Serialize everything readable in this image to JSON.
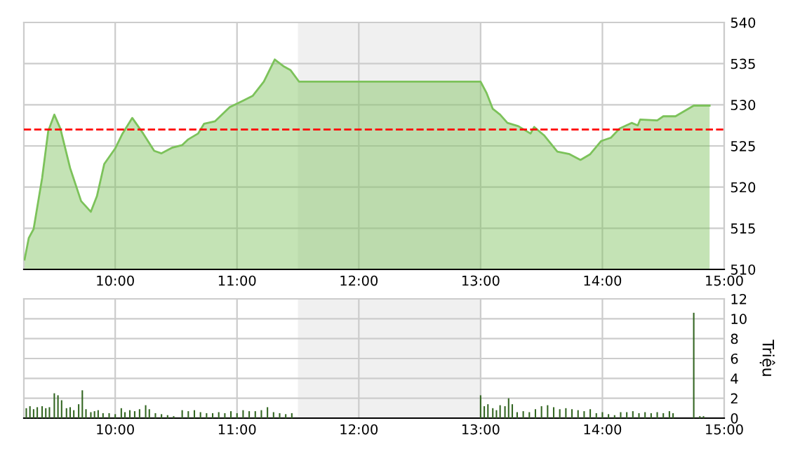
{
  "chart_data": [
    {
      "type": "area",
      "x": [
        9.256,
        9.29,
        9.33,
        9.4,
        9.45,
        9.5,
        9.55,
        9.63,
        9.72,
        9.8,
        9.85,
        9.91,
        10.0,
        10.06,
        10.14,
        10.23,
        10.32,
        10.38,
        10.47,
        10.55,
        10.6,
        10.68,
        10.73,
        10.82,
        10.94,
        11.05,
        11.13,
        11.22,
        11.31,
        11.38,
        11.44,
        11.51,
        13.0,
        13.05,
        13.1,
        13.16,
        13.22,
        13.31,
        13.41,
        13.44,
        13.52,
        13.63,
        13.73,
        13.82,
        13.9,
        13.99,
        14.07,
        14.14,
        14.24,
        14.29,
        14.31,
        14.45,
        14.5,
        14.6,
        14.75,
        14.88
      ],
      "series": [
        {
          "color": "#7cc25a",
          "values": [
            511.2,
            513.8,
            514.9,
            521.1,
            526.8,
            528.8,
            527.1,
            522.3,
            518.3,
            517.0,
            518.9,
            522.8,
            524.7,
            526.5,
            528.4,
            526.5,
            524.4,
            524.1,
            524.8,
            525.1,
            525.8,
            526.5,
            527.7,
            528.0,
            529.7,
            530.5,
            531.1,
            532.8,
            535.5,
            534.7,
            534.2,
            532.8,
            532.8,
            531.4,
            529.5,
            528.8,
            527.8,
            527.4,
            526.5,
            527.3,
            526.3,
            524.3,
            524.0,
            523.3,
            524.0,
            525.6,
            526.0,
            527.1,
            527.8,
            527.5,
            528.2,
            528.1,
            528.6,
            528.6,
            529.9,
            529.9
          ]
        }
      ],
      "xlim": [
        9.25,
        15
      ],
      "xticks": [
        {
          "value": 10,
          "label": "10:00"
        },
        {
          "value": 11,
          "label": "11:00"
        },
        {
          "value": 12,
          "label": "12:00"
        },
        {
          "value": 13,
          "label": "13:00"
        },
        {
          "value": 14,
          "label": "14:00"
        },
        {
          "value": 15,
          "label": "15:00"
        }
      ],
      "ylim": [
        510,
        540
      ],
      "yticks": [
        510,
        515,
        520,
        525,
        530,
        535,
        540
      ],
      "grid": true,
      "ref_lines": [
        {
          "axis": "y",
          "value": 527,
          "color": "#ff0000",
          "line_style": "dashed"
        }
      ],
      "bands": [
        {
          "axis": "x",
          "from": 11.5,
          "to": 13.0,
          "color": "#f0f0f0"
        }
      ]
    },
    {
      "type": "bar",
      "ylabel": "Triệu",
      "x": [
        9.27,
        9.3,
        9.33,
        9.36,
        9.4,
        9.43,
        9.46,
        9.5,
        9.53,
        9.56,
        9.6,
        9.63,
        9.66,
        9.7,
        9.73,
        9.76,
        9.8,
        9.83,
        9.86,
        9.9,
        9.95,
        10.0,
        10.05,
        10.08,
        10.12,
        10.16,
        10.2,
        10.25,
        10.28,
        10.33,
        10.38,
        10.43,
        10.48,
        10.55,
        10.6,
        10.65,
        10.7,
        10.75,
        10.8,
        10.85,
        10.9,
        10.95,
        11.0,
        11.05,
        11.1,
        11.15,
        11.2,
        11.25,
        11.3,
        11.35,
        11.4,
        11.45,
        13.0,
        13.03,
        13.06,
        13.1,
        13.13,
        13.16,
        13.2,
        13.23,
        13.26,
        13.3,
        13.35,
        13.4,
        13.45,
        13.5,
        13.55,
        13.6,
        13.65,
        13.7,
        13.75,
        13.8,
        13.85,
        13.9,
        13.95,
        14.0,
        14.05,
        14.1,
        14.15,
        14.2,
        14.25,
        14.3,
        14.35,
        14.4,
        14.45,
        14.5,
        14.55,
        14.58,
        14.75,
        14.8,
        14.83
      ],
      "series": [
        {
          "color": "#336622",
          "values": [
            1.0,
            1.2,
            0.9,
            1.1,
            1.2,
            1.0,
            1.1,
            2.5,
            2.3,
            1.8,
            1.0,
            1.1,
            0.8,
            1.4,
            2.8,
            0.9,
            0.6,
            0.7,
            0.8,
            0.5,
            0.5,
            0.4,
            1.0,
            0.6,
            0.8,
            0.7,
            0.9,
            1.3,
            0.9,
            0.5,
            0.4,
            0.3,
            0.2,
            0.8,
            0.7,
            0.8,
            0.6,
            0.5,
            0.5,
            0.6,
            0.5,
            0.7,
            0.5,
            0.8,
            0.7,
            0.7,
            0.8,
            1.1,
            0.6,
            0.5,
            0.4,
            0.5,
            2.3,
            1.2,
            1.4,
            1.0,
            0.8,
            1.3,
            1.2,
            2.0,
            1.4,
            0.6,
            0.7,
            0.6,
            0.9,
            1.2,
            1.3,
            1.1,
            0.9,
            1.0,
            0.9,
            0.8,
            0.7,
            0.9,
            0.5,
            0.6,
            0.4,
            0.3,
            0.6,
            0.6,
            0.7,
            0.5,
            0.6,
            0.5,
            0.6,
            0.5,
            0.7,
            0.5,
            10.6,
            0.2,
            0.2
          ]
        }
      ],
      "xlim": [
        9.25,
        15
      ],
      "xticks": [
        {
          "value": 10,
          "label": "10:00"
        },
        {
          "value": 11,
          "label": "11:00"
        },
        {
          "value": 12,
          "label": "12:00"
        },
        {
          "value": 13,
          "label": "13:00"
        },
        {
          "value": 14,
          "label": "14:00"
        },
        {
          "value": 15,
          "label": "15:00"
        }
      ],
      "ylim": [
        0,
        12
      ],
      "yticks": [
        0,
        2,
        4,
        6,
        8,
        10,
        12
      ],
      "grid": true,
      "bands": [
        {
          "axis": "x",
          "from": 11.5,
          "to": 13.0,
          "color": "#f0f0f0"
        }
      ]
    }
  ]
}
